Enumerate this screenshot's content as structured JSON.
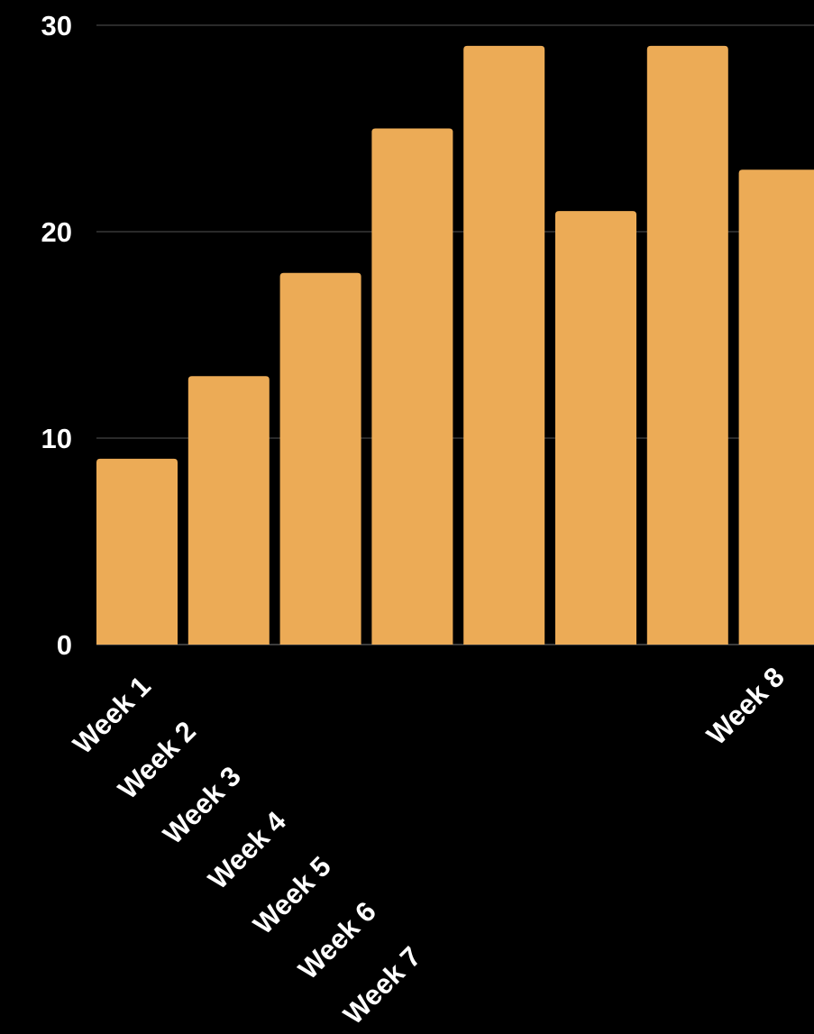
{
  "chart_data": {
    "type": "bar",
    "categories": [
      "Week 1",
      "Week 2",
      "Week 3",
      "Week 4",
      "Week 5",
      "Week 6",
      "Week 7",
      "Week 8"
    ],
    "values": [
      9,
      13,
      18,
      25,
      29,
      21,
      29,
      23
    ],
    "title": "",
    "xlabel": "",
    "ylabel": "",
    "ylim": [
      0,
      30
    ],
    "yticks": [
      0,
      10,
      20,
      30
    ],
    "grid": true,
    "legend": "none",
    "colors": {
      "bar": "#ECAB56",
      "background": "#000000",
      "text": "#FFFFFF",
      "gridline": "#555555"
    }
  }
}
